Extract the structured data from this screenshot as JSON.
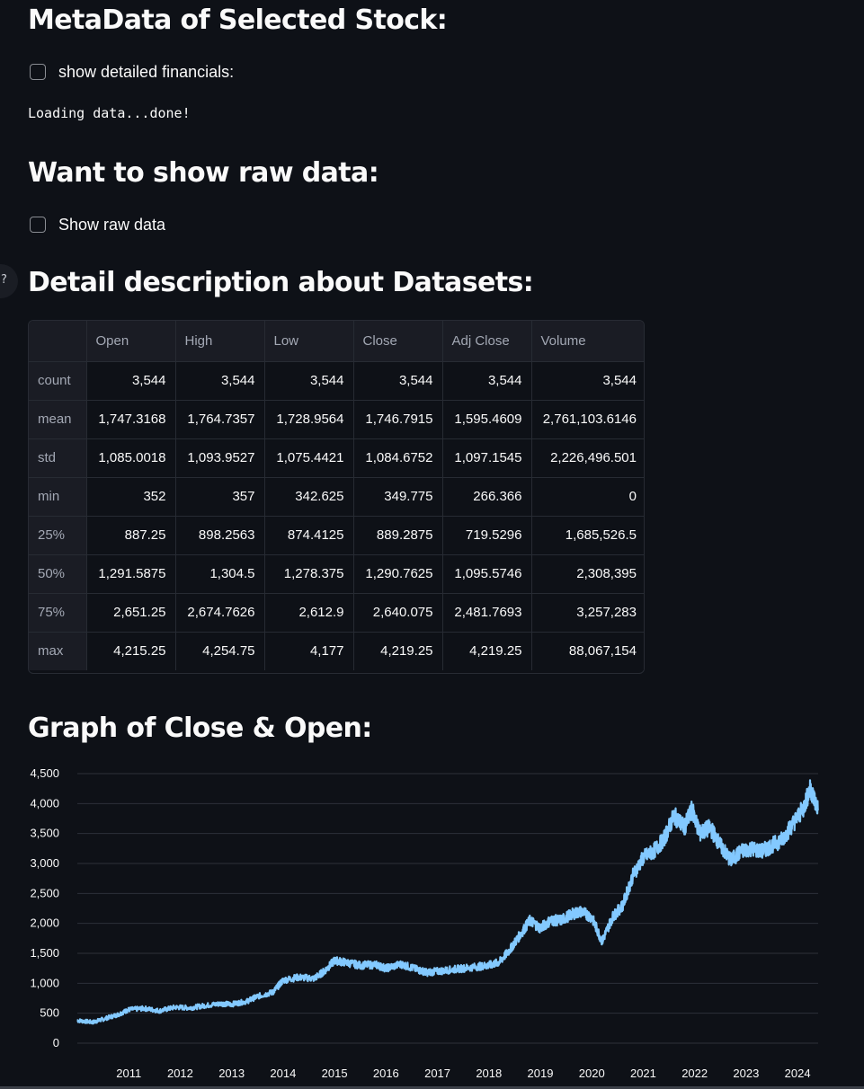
{
  "sections": {
    "metadata_title": "MetaData of Selected Stock:",
    "show_financials_label": "show detailed financials:",
    "loading_text": "Loading data...done!",
    "raw_data_title": "Want to show raw data:",
    "show_raw_label": "Show raw data",
    "describe_title": "Detail description about Datasets:",
    "graph_title": "Graph of Close & Open:"
  },
  "sidebar_toggle_icon": "?",
  "table": {
    "columns": [
      "",
      "Open",
      "High",
      "Low",
      "Close",
      "Adj Close",
      "Volume"
    ],
    "rows": [
      {
        "label": "count",
        "values": [
          "3,544",
          "3,544",
          "3,544",
          "3,544",
          "3,544",
          "3,544"
        ]
      },
      {
        "label": "mean",
        "values": [
          "1,747.3168",
          "1,764.7357",
          "1,728.9564",
          "1,746.7915",
          "1,595.4609",
          "2,761,103.6146"
        ]
      },
      {
        "label": "std",
        "values": [
          "1,085.0018",
          "1,093.9527",
          "1,075.4421",
          "1,084.6752",
          "1,097.1545",
          "2,226,496.501"
        ]
      },
      {
        "label": "min",
        "values": [
          "352",
          "357",
          "342.625",
          "349.775",
          "266.366",
          "0"
        ]
      },
      {
        "label": "25%",
        "values": [
          "887.25",
          "898.2563",
          "874.4125",
          "889.2875",
          "719.5296",
          "1,685,526.5"
        ]
      },
      {
        "label": "50%",
        "values": [
          "1,291.5875",
          "1,304.5",
          "1,278.375",
          "1,290.7625",
          "1,095.5746",
          "2,308,395"
        ]
      },
      {
        "label": "75%",
        "values": [
          "2,651.25",
          "2,674.7626",
          "2,612.9",
          "2,640.075",
          "2,481.7693",
          "3,257,283"
        ]
      },
      {
        "label": "max",
        "values": [
          "4,215.25",
          "4,254.75",
          "4,177",
          "4,219.25",
          "4,219.25",
          "88,067,154"
        ]
      }
    ]
  },
  "chart_data": {
    "type": "line",
    "title": "Graph of Close & Open:",
    "xlabel": "",
    "ylabel": "",
    "ylim": [
      0,
      4500
    ],
    "xlim": [
      2010.0,
      2024.4
    ],
    "yticks": [
      "0",
      "500",
      "1,000",
      "1,500",
      "2,000",
      "2,500",
      "3,000",
      "3,500",
      "4,000",
      "4,500"
    ],
    "xticks": [
      "2011",
      "2012",
      "2013",
      "2014",
      "2015",
      "2016",
      "2017",
      "2018",
      "2019",
      "2020",
      "2021",
      "2022",
      "2023",
      "2024"
    ],
    "grid": true,
    "color": "#83c9ff",
    "series": [
      {
        "x": [
          2010.0,
          2010.3,
          2010.5,
          2010.8,
          2011.0,
          2011.3,
          2011.6,
          2011.9,
          2012.2,
          2012.5,
          2012.8,
          2013.0,
          2013.3,
          2013.5,
          2013.8,
          2014.0,
          2014.3,
          2014.6,
          2014.8,
          2015.0,
          2015.2,
          2015.5,
          2015.8,
          2016.0,
          2016.3,
          2016.6,
          2016.8,
          2017.0,
          2017.3,
          2017.5,
          2017.8,
          2018.0,
          2018.2,
          2018.4,
          2018.6,
          2018.8,
          2019.0,
          2019.2,
          2019.4,
          2019.6,
          2019.8,
          2020.0,
          2020.2,
          2020.4,
          2020.6,
          2020.8,
          2021.0,
          2021.2,
          2021.4,
          2021.6,
          2021.8,
          2021.95,
          2022.1,
          2022.3,
          2022.5,
          2022.7,
          2022.9,
          2023.1,
          2023.3,
          2023.5,
          2023.7,
          2023.9,
          2024.1,
          2024.25,
          2024.4
        ],
        "y": [
          380,
          350,
          400,
          480,
          560,
          580,
          540,
          600,
          590,
          630,
          660,
          650,
          700,
          780,
          850,
          1050,
          1100,
          1080,
          1200,
          1380,
          1350,
          1300,
          1310,
          1250,
          1320,
          1230,
          1180,
          1200,
          1230,
          1250,
          1280,
          1300,
          1350,
          1550,
          1800,
          2050,
          1920,
          2050,
          2050,
          2150,
          2200,
          2100,
          1700,
          2100,
          2300,
          2800,
          3100,
          3200,
          3400,
          3800,
          3600,
          3900,
          3500,
          3600,
          3300,
          3050,
          3200,
          3250,
          3200,
          3300,
          3400,
          3650,
          3900,
          4250,
          3900
        ]
      }
    ]
  }
}
